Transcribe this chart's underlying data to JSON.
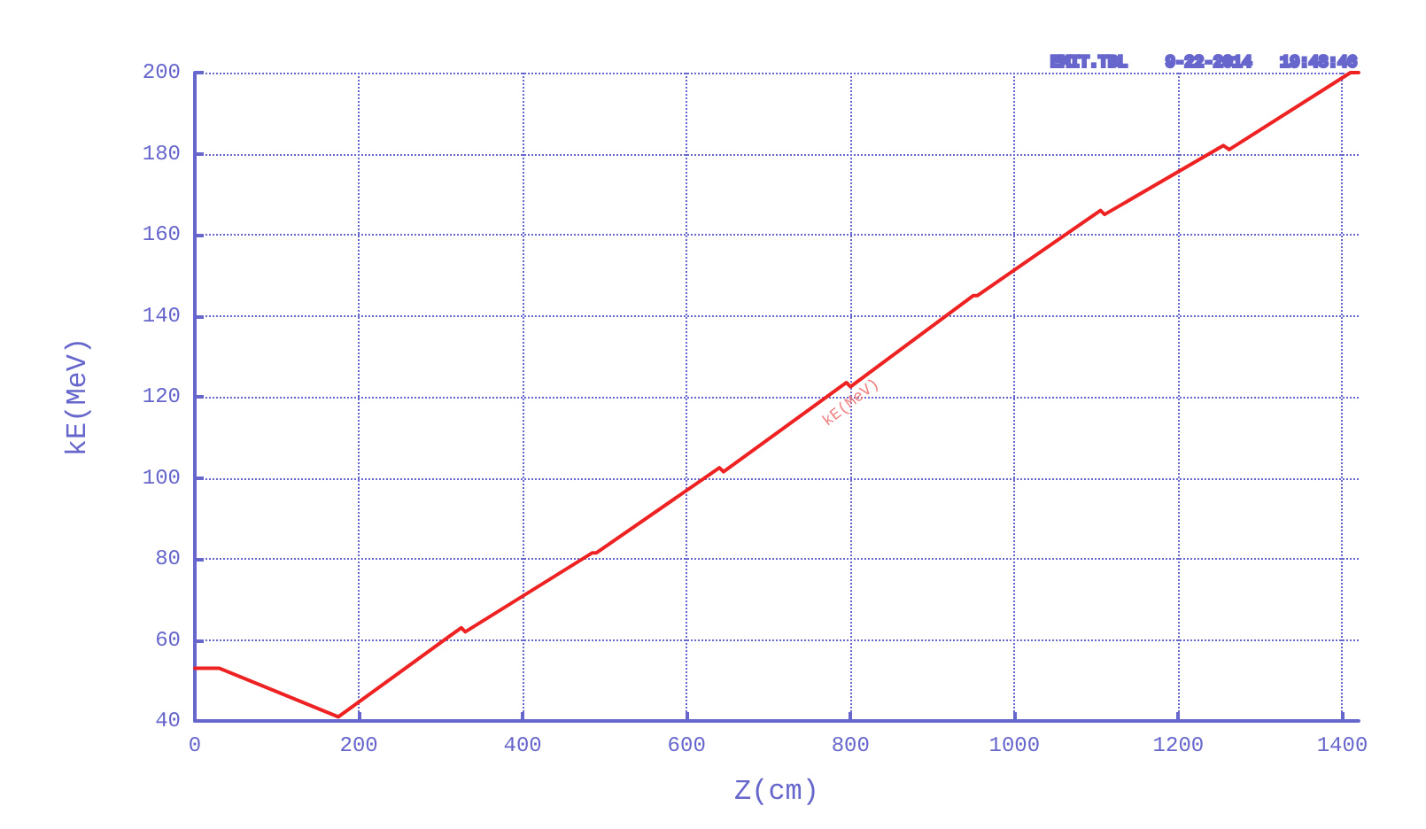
{
  "chart_data": {
    "type": "line",
    "xlabel": "Z(cm)",
    "ylabel": "kE(MeV)",
    "annotations": [
      "EMIT.TBL    9-22-2014   19:48:46"
    ],
    "x": [
      0,
      30,
      175,
      325,
      330,
      485,
      490,
      640,
      645,
      795,
      800,
      950,
      955,
      1105,
      1110,
      1255,
      1262,
      1410,
      1420
    ],
    "series": [
      {
        "name": "kE(MeV)",
        "color": "#ee2222",
        "values": [
          53,
          53,
          41,
          63,
          62,
          81.5,
          81.5,
          102.5,
          101.5,
          123.5,
          122.5,
          145,
          145,
          166,
          165,
          182,
          181,
          200,
          200
        ]
      }
    ],
    "xlim": [
      0,
      1420
    ],
    "xticks": [
      0,
      200,
      400,
      600,
      800,
      1000,
      1200,
      1400
    ],
    "ylim": [
      40,
      200
    ],
    "yticks": [
      40,
      60,
      80,
      100,
      120,
      140,
      160,
      180,
      200
    ],
    "grid": true,
    "legend": false,
    "marker": "none",
    "line_style": "solid"
  }
}
